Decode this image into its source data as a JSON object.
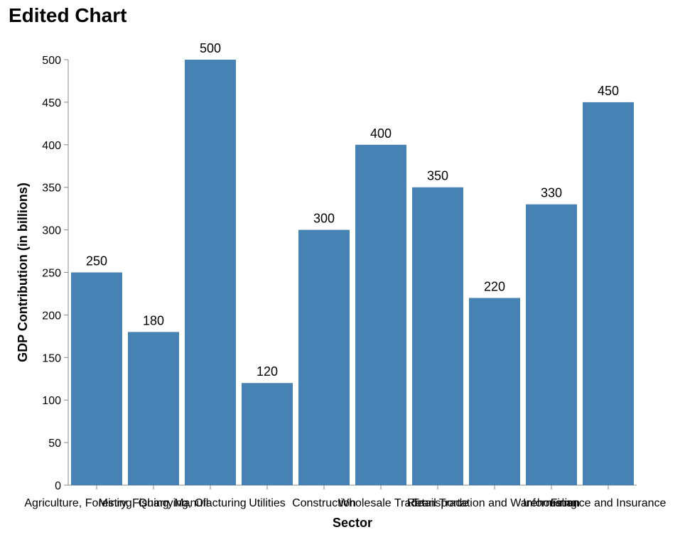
{
  "chart_data": {
    "type": "bar",
    "title": "Edited Chart",
    "xlabel": "Sector",
    "ylabel": "GDP Contribution (in billions)",
    "categories": [
      "Agriculture, Forestry, Fishing",
      "Mining, Quarrying, Oil",
      "Manufacturing",
      "Utilities",
      "Construction",
      "Wholesale Trade",
      "Retail Trade",
      "Transportation and Warehousing",
      "Information",
      "Finance and Insurance"
    ],
    "values": [
      250,
      180,
      500,
      120,
      300,
      400,
      350,
      220,
      330,
      450
    ],
    "ylim": [
      0,
      500
    ],
    "yticks": [
      0,
      50,
      100,
      150,
      200,
      250,
      300,
      350,
      400,
      450,
      500
    ],
    "bar_color": "#4682b4",
    "grid": false,
    "legend": "none"
  }
}
